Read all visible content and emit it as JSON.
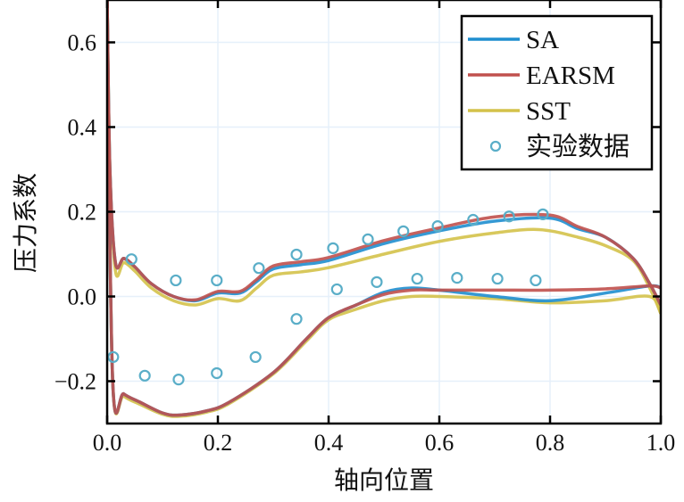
{
  "chart_data": {
    "type": "line",
    "title": "",
    "xlabel": "轴向位置",
    "ylabel": "压力系数",
    "xlim": [
      0,
      1.0
    ],
    "ylim": [
      -0.3,
      0.7
    ],
    "grid": true,
    "legend_placement": "top-right",
    "xticks": [
      {
        "v": 0,
        "label": "0.0"
      },
      {
        "v": 0.2,
        "label": "0.2"
      },
      {
        "v": 0.4,
        "label": "0.4"
      },
      {
        "v": 0.6,
        "label": "0.6"
      },
      {
        "v": 0.8,
        "label": "0.8"
      },
      {
        "v": 1.0,
        "label": "1.0"
      }
    ],
    "yticks": [
      {
        "v": -0.2,
        "label": "−0.2"
      },
      {
        "v": 0,
        "label": "0.0"
      },
      {
        "v": 0.2,
        "label": "0.2"
      },
      {
        "v": 0.4,
        "label": "0.4"
      },
      {
        "v": 0.6,
        "label": "0.6"
      }
    ],
    "series": [
      {
        "name": "SA",
        "color": "#1f8ecf",
        "kind": "line",
        "branches": [
          {
            "x": [
              0,
              0.005,
              0.015,
              0.03,
              0.05,
              0.08,
              0.12,
              0.16,
              0.2,
              0.24,
              0.27,
              0.3,
              0.35,
              0.4,
              0.5,
              0.6,
              0.7,
              0.8,
              0.85,
              0.9,
              0.95,
              0.98,
              1.0
            ],
            "y": [
              0.7,
              0.3,
              0.08,
              0.09,
              0.07,
              0.03,
              0.0,
              -0.01,
              0.008,
              0.008,
              0.035,
              0.065,
              0.075,
              0.085,
              0.125,
              0.155,
              0.178,
              0.185,
              0.16,
              0.14,
              0.09,
              0.03,
              -0.02
            ]
          },
          {
            "x": [
              0,
              0.01,
              0.03,
              0.06,
              0.1,
              0.13,
              0.18,
              0.22,
              0.3,
              0.36,
              0.4,
              0.45,
              0.5,
              0.55,
              0.6,
              0.7,
              0.8,
              0.9,
              0.98,
              1.0
            ],
            "y": [
              0.7,
              -0.2,
              -0.23,
              -0.25,
              -0.275,
              -0.28,
              -0.27,
              -0.25,
              -0.18,
              -0.1,
              -0.05,
              -0.02,
              0.01,
              0.02,
              0.015,
              0.0,
              -0.01,
              0.008,
              0.025,
              0.02
            ]
          }
        ]
      },
      {
        "name": "EARSM",
        "color": "#c0504d",
        "kind": "line",
        "branches": [
          {
            "x": [
              0,
              0.005,
              0.015,
              0.03,
              0.05,
              0.08,
              0.12,
              0.16,
              0.2,
              0.24,
              0.27,
              0.3,
              0.35,
              0.4,
              0.5,
              0.6,
              0.7,
              0.8,
              0.85,
              0.9,
              0.95,
              0.98,
              1.0
            ],
            "y": [
              0.7,
              0.3,
              0.08,
              0.09,
              0.07,
              0.03,
              0.0,
              -0.008,
              0.012,
              0.012,
              0.04,
              0.072,
              0.082,
              0.092,
              0.132,
              0.162,
              0.188,
              0.192,
              0.165,
              0.14,
              0.09,
              0.03,
              -0.02
            ]
          },
          {
            "x": [
              0,
              0.01,
              0.03,
              0.06,
              0.1,
              0.13,
              0.18,
              0.22,
              0.3,
              0.36,
              0.4,
              0.45,
              0.5,
              0.55,
              0.6,
              0.7,
              0.8,
              0.9,
              0.98,
              1.0
            ],
            "y": [
              0.7,
              -0.2,
              -0.23,
              -0.25,
              -0.275,
              -0.28,
              -0.27,
              -0.25,
              -0.18,
              -0.1,
              -0.05,
              -0.02,
              0.005,
              0.015,
              0.015,
              0.015,
              0.015,
              0.018,
              0.025,
              0.02
            ]
          }
        ]
      },
      {
        "name": "SST",
        "color": "#d4c24a",
        "kind": "line",
        "branches": [
          {
            "x": [
              0,
              0.005,
              0.015,
              0.03,
              0.05,
              0.08,
              0.12,
              0.16,
              0.2,
              0.24,
              0.27,
              0.3,
              0.35,
              0.4,
              0.5,
              0.6,
              0.7,
              0.78,
              0.85,
              0.9,
              0.95,
              0.98,
              1.0
            ],
            "y": [
              0.7,
              0.3,
              0.06,
              0.08,
              0.06,
              0.02,
              -0.01,
              -0.02,
              -0.005,
              -0.01,
              0.02,
              0.05,
              0.058,
              0.068,
              0.1,
              0.13,
              0.15,
              0.158,
              0.14,
              0.12,
              0.085,
              0.02,
              -0.04
            ]
          },
          {
            "x": [
              0,
              0.01,
              0.03,
              0.06,
              0.1,
              0.13,
              0.18,
              0.22,
              0.3,
              0.36,
              0.4,
              0.45,
              0.5,
              0.55,
              0.6,
              0.7,
              0.8,
              0.9,
              0.98,
              1.0
            ],
            "y": [
              0.7,
              -0.2,
              -0.235,
              -0.255,
              -0.278,
              -0.283,
              -0.273,
              -0.253,
              -0.183,
              -0.105,
              -0.055,
              -0.03,
              -0.01,
              0.0,
              0.0,
              -0.005,
              -0.015,
              -0.01,
              0.0,
              -0.04
            ]
          }
        ]
      },
      {
        "name": "实验数据",
        "color": "#5aaec8",
        "kind": "scatter",
        "x": [
          0.044,
          0.124,
          0.198,
          0.274,
          0.342,
          0.408,
          0.471,
          0.535,
          0.597,
          0.661,
          0.726,
          0.787,
          0.011,
          0.068,
          0.129,
          0.198,
          0.268,
          0.342,
          0.415,
          0.487,
          0.56,
          0.632,
          0.705,
          0.774
        ],
        "y": [
          0.088,
          0.038,
          0.038,
          0.067,
          0.099,
          0.114,
          0.135,
          0.154,
          0.166,
          0.181,
          0.189,
          0.194,
          -0.143,
          -0.187,
          -0.196,
          -0.181,
          -0.143,
          -0.053,
          0.017,
          0.034,
          0.042,
          0.044,
          0.042,
          0.038
        ]
      }
    ]
  }
}
